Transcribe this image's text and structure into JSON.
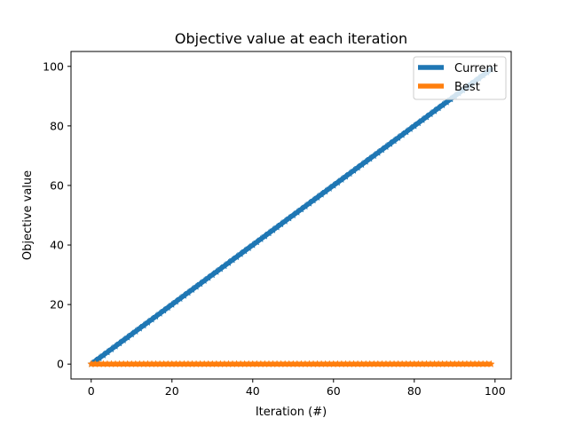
{
  "chart_data": {
    "type": "line",
    "title": "Objective value at each iteration",
    "xlabel": "Iteration (#)",
    "ylabel": "Objective value",
    "xlim": [
      -5,
      104
    ],
    "ylim": [
      -5,
      105
    ],
    "xticks": [
      0,
      20,
      40,
      60,
      80,
      100
    ],
    "yticks": [
      0,
      20,
      40,
      60,
      80,
      100
    ],
    "xtick_labels": [
      "0",
      "20",
      "40",
      "60",
      "80",
      "100"
    ],
    "ytick_labels": [
      "0",
      "20",
      "40",
      "60",
      "80",
      "100"
    ],
    "grid": false,
    "legend_position": "top-right",
    "series": [
      {
        "name": "Current",
        "color": "#1f77b4",
        "marker": "star",
        "x": [
          0,
          99
        ],
        "y": [
          0,
          99
        ],
        "points": 100
      },
      {
        "name": "Best",
        "color": "#ff7f0e",
        "marker": "star",
        "x": [
          0,
          99
        ],
        "y": [
          0,
          0
        ],
        "points": 100
      }
    ]
  }
}
